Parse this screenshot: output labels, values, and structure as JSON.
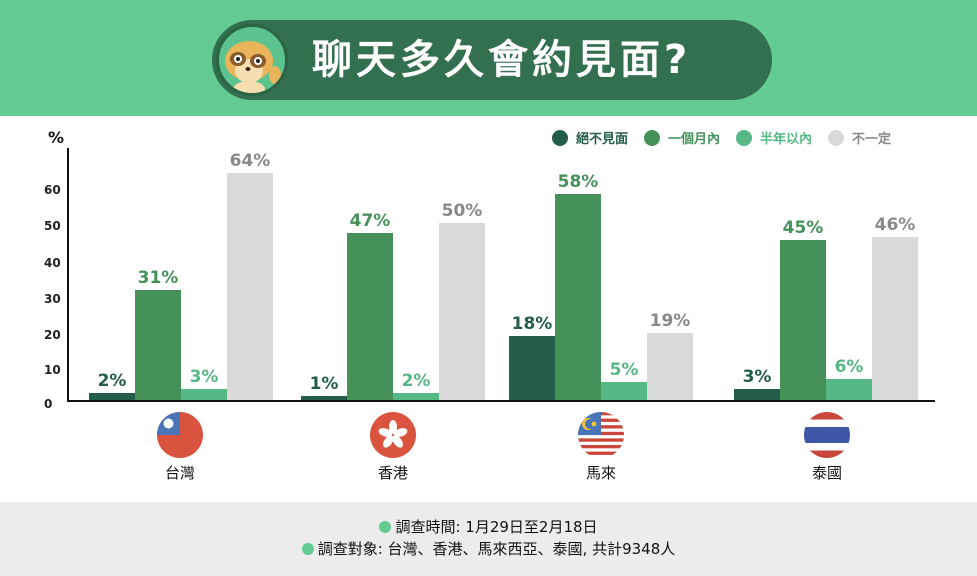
{
  "header": {
    "title": "聊天多久會約見面?",
    "mascot_icon": "meerkat-mascot-icon",
    "background_color": "#63cc93",
    "pill_color": "#337050"
  },
  "legend": [
    {
      "label": "絕不見面",
      "color": "#245e4a",
      "text_color": "#245e4a"
    },
    {
      "label": "一個月內",
      "color": "#46915a",
      "text_color": "#46915a"
    },
    {
      "label": "半年以內",
      "color": "#56b884",
      "text_color": "#56b884"
    },
    {
      "label": "不一定",
      "color": "#d9d9d9",
      "text_color": "#888888"
    }
  ],
  "y_axis": {
    "unit": "%",
    "ticks": [
      "60",
      "50",
      "40",
      "30",
      "20",
      "10",
      "0"
    ]
  },
  "countries": [
    {
      "name": "台灣",
      "flag_icon": "taiwan-flag-icon",
      "values": [
        2,
        31,
        3,
        64
      ],
      "labels": [
        "2%",
        "31%",
        "3%",
        "64%"
      ]
    },
    {
      "name": "香港",
      "flag_icon": "hong-kong-flag-icon",
      "values": [
        1,
        47,
        2,
        50
      ],
      "labels": [
        "1%",
        "47%",
        "2%",
        "50%"
      ]
    },
    {
      "name": "馬來",
      "flag_icon": "malaysia-flag-icon",
      "values": [
        18,
        58,
        5,
        19
      ],
      "labels": [
        "18%",
        "58%",
        "5%",
        "19%"
      ]
    },
    {
      "name": "泰國",
      "flag_icon": "thailand-flag-icon",
      "values": [
        3,
        45,
        6,
        46
      ],
      "labels": [
        "3%",
        "45%",
        "6%",
        "46%"
      ]
    }
  ],
  "footer": {
    "line1": "調查時間: 1月29日至2月18日",
    "line2": "調查對象: 台灣、香港、馬來西亞、泰國, 共計9348人"
  },
  "chart_data": {
    "type": "bar",
    "title": "聊天多久會約見面?",
    "categories": [
      "台灣",
      "香港",
      "馬來",
      "泰國"
    ],
    "series": [
      {
        "name": "絕不見面",
        "color": "#245e4a",
        "values": [
          2,
          1,
          18,
          3
        ]
      },
      {
        "name": "一個月內",
        "color": "#46915a",
        "values": [
          31,
          47,
          58,
          45
        ]
      },
      {
        "name": "半年以內",
        "color": "#56b884",
        "values": [
          3,
          2,
          5,
          6
        ]
      },
      {
        "name": "不一定",
        "color": "#d9d9d9",
        "values": [
          64,
          50,
          19,
          46
        ]
      }
    ],
    "xlabel": "",
    "ylabel": "%",
    "yticks": [
      0,
      10,
      20,
      30,
      40,
      50,
      60
    ],
    "ylim": [
      0,
      70
    ],
    "grid": false,
    "legend_position": "top-right",
    "data_labels": true,
    "notes": [
      "調查時間: 1月29日至2月18日",
      "調查對象: 台灣、香港、馬來西亞、泰國, 共計9348人"
    ]
  }
}
